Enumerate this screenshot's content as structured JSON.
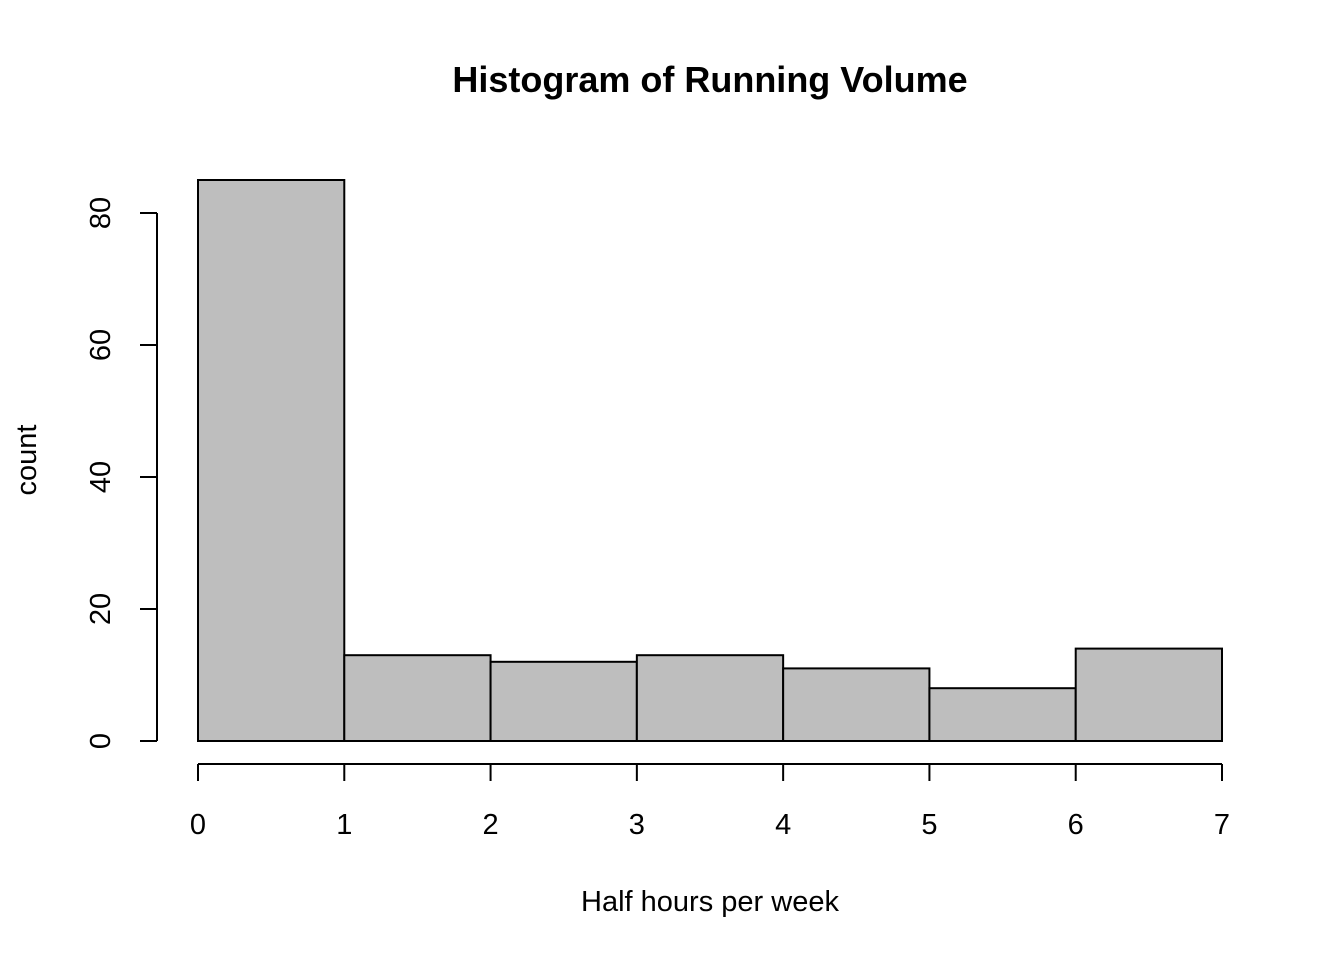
{
  "chart_data": {
    "type": "bar",
    "subtype": "histogram",
    "title": "Histogram of Running Volume",
    "xlabel": "Half hours per week",
    "ylabel": "count",
    "bins": [
      {
        "start": 0,
        "end": 1,
        "count": 85
      },
      {
        "start": 1,
        "end": 2,
        "count": 13
      },
      {
        "start": 2,
        "end": 3,
        "count": 12
      },
      {
        "start": 3,
        "end": 4,
        "count": 13
      },
      {
        "start": 4,
        "end": 5,
        "count": 11
      },
      {
        "start": 5,
        "end": 6,
        "count": 8
      },
      {
        "start": 6,
        "end": 7,
        "count": 14
      }
    ],
    "xlim": [
      0,
      7
    ],
    "ylim": [
      0,
      85
    ],
    "x_ticks": [
      "0",
      "1",
      "2",
      "3",
      "4",
      "5",
      "6",
      "7"
    ],
    "y_ticks": [
      "0",
      "20",
      "40",
      "60",
      "80"
    ],
    "bar_color": "#bebebe",
    "border_color": "#000000",
    "grid": false,
    "legend": "none"
  }
}
